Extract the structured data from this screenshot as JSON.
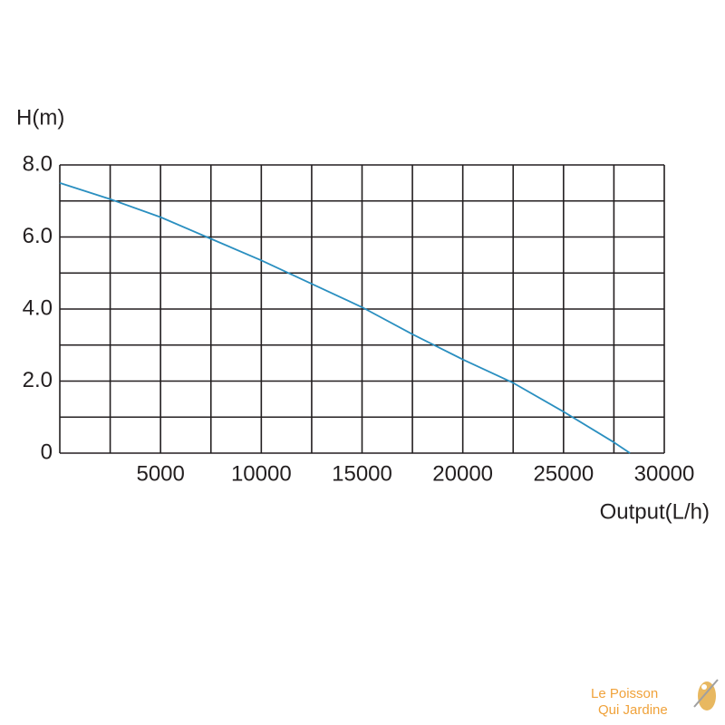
{
  "chart_data": {
    "type": "line",
    "y_label": "H(m)",
    "x_label": "Output(L/h)",
    "x": [
      0,
      2500,
      5000,
      7500,
      10000,
      12500,
      15000,
      17500,
      20000,
      22500,
      25000,
      27500,
      28300
    ],
    "series": [
      {
        "color": "#2a8fc0",
        "values": [
          7.5,
          7.05,
          6.55,
          5.95,
          5.35,
          4.7,
          4.05,
          3.3,
          2.6,
          1.95,
          1.15,
          0.3,
          0
        ]
      }
    ],
    "xlim": [
      0,
      30000
    ],
    "ylim": [
      0,
      8
    ],
    "xticks": [
      5000,
      10000,
      15000,
      20000,
      25000,
      30000
    ],
    "yticks": [
      0,
      {
        "value": 2,
        "label": "2.0"
      },
      {
        "value": 4,
        "label": "4.0"
      },
      {
        "value": 6,
        "label": "6.0"
      },
      {
        "value": 8,
        "label": "8.0"
      }
    ],
    "x_grid": [
      0,
      2500,
      5000,
      7500,
      10000,
      12500,
      15000,
      17500,
      20000,
      22500,
      25000,
      27500,
      30000
    ],
    "y_grid": [
      0,
      1,
      2,
      3,
      4,
      5,
      6,
      7,
      8
    ],
    "watermark": [
      "Le Poisson",
      "Qui Jardine"
    ]
  }
}
